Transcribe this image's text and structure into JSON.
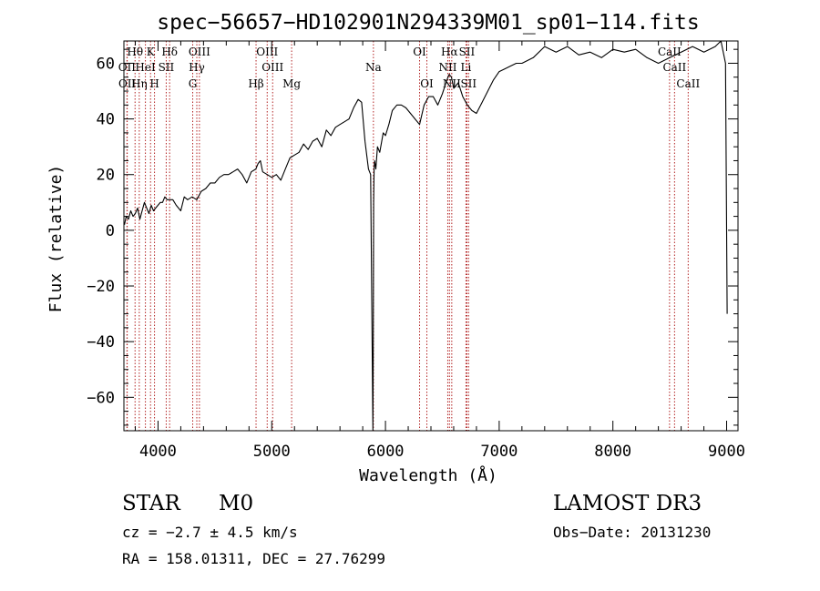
{
  "chart_data": {
    "type": "line",
    "title": "spec−56657−HD102901N294339M01_sp01−114.fits",
    "xlabel": "Wavelength (Å)",
    "ylabel": "Flux (relative)",
    "xlim": [
      3700,
      9100
    ],
    "ylim": [
      -72,
      68
    ],
    "xticks": [
      4000,
      5000,
      6000,
      7000,
      8000,
      9000
    ],
    "yticks": [
      -60,
      -40,
      -20,
      0,
      20,
      40,
      60
    ],
    "ytick_labels": [
      "−60",
      "−40",
      "−20",
      "0",
      "20",
      "40",
      "60"
    ],
    "series": [
      {
        "name": "flux",
        "x": [
          3705,
          3720,
          3740,
          3760,
          3780,
          3800,
          3820,
          3840,
          3860,
          3880,
          3900,
          3920,
          3940,
          3960,
          3980,
          4000,
          4020,
          4040,
          4060,
          4080,
          4100,
          4130,
          4160,
          4200,
          4230,
          4260,
          4300,
          4340,
          4380,
          4420,
          4460,
          4500,
          4540,
          4580,
          4620,
          4660,
          4700,
          4740,
          4780,
          4820,
          4860,
          4880,
          4900,
          4920,
          4960,
          5000,
          5040,
          5080,
          5120,
          5160,
          5200,
          5240,
          5280,
          5320,
          5360,
          5400,
          5440,
          5480,
          5520,
          5560,
          5600,
          5640,
          5680,
          5720,
          5760,
          5790,
          5820,
          5850,
          5870,
          5885,
          5890,
          5893,
          5896,
          5900,
          5905,
          5915,
          5930,
          5950,
          5980,
          6000,
          6030,
          6060,
          6100,
          6140,
          6180,
          6220,
          6260,
          6300,
          6340,
          6380,
          6420,
          6460,
          6500,
          6540,
          6560,
          6580,
          6600,
          6640,
          6680,
          6720,
          6760,
          6800,
          6850,
          6900,
          6950,
          7000,
          7050,
          7100,
          7150,
          7200,
          7300,
          7400,
          7500,
          7600,
          7700,
          7800,
          7900,
          8000,
          8100,
          8200,
          8300,
          8400,
          8500,
          8600,
          8700,
          8800,
          8900,
          8950,
          8990,
          9000,
          9005
        ],
        "values": [
          2,
          5,
          4,
          7,
          5,
          6,
          8,
          4,
          7,
          10,
          8,
          6,
          9,
          7,
          8,
          9,
          10,
          10,
          12,
          11,
          11,
          11,
          9,
          7,
          12,
          11,
          12,
          11,
          14,
          15,
          17,
          17,
          19,
          20,
          20,
          21,
          22,
          20,
          17,
          21,
          22,
          24,
          25,
          21,
          20,
          19,
          20,
          18,
          22,
          26,
          27,
          28,
          31,
          29,
          32,
          33,
          30,
          36,
          34,
          37,
          38,
          39,
          40,
          44,
          47,
          46,
          32,
          22,
          20,
          -50,
          -72,
          -40,
          10,
          22,
          25,
          22,
          30,
          28,
          35,
          34,
          38,
          43,
          45,
          45,
          44,
          42,
          40,
          38,
          45,
          48,
          48,
          45,
          49,
          54,
          56,
          55,
          51,
          53,
          48,
          45,
          43,
          42,
          46,
          50,
          54,
          57,
          58,
          59,
          60,
          60,
          62,
          66,
          64,
          66,
          63,
          64,
          62,
          65,
          64,
          65,
          62,
          60,
          62,
          64,
          66,
          64,
          66,
          68,
          60,
          0,
          -30
        ]
      }
    ],
    "line_labels": [
      {
        "name": "Hθ",
        "x": 3798,
        "row": 1
      },
      {
        "name": "OII",
        "x": 3727,
        "row": 2
      },
      {
        "name": "OII",
        "x": 3729,
        "row": 3
      },
      {
        "name": "HeI",
        "x": 3889,
        "row": 2
      },
      {
        "name": "Hη",
        "x": 3835,
        "row": 3
      },
      {
        "name": "K",
        "x": 3934,
        "row": 1
      },
      {
        "name": "SII",
        "x": 4072,
        "row": 2
      },
      {
        "name": "H",
        "x": 3969,
        "row": 3
      },
      {
        "name": "Hδ",
        "x": 4102,
        "row": 1
      },
      {
        "name": "OIII",
        "x": 4364,
        "row": 1
      },
      {
        "name": "Hγ",
        "x": 4341,
        "row": 2
      },
      {
        "name": "G",
        "x": 4305,
        "row": 3
      },
      {
        "name": "OIII",
        "x": 4960,
        "row": 1
      },
      {
        "name": "OIII",
        "x": 5008,
        "row": 2
      },
      {
        "name": "Hβ",
        "x": 4862,
        "row": 3
      },
      {
        "name": "Mg",
        "x": 5175,
        "row": 3
      },
      {
        "name": "Na",
        "x": 5894,
        "row": 2
      },
      {
        "name": "OI",
        "x": 6300,
        "row": 1
      },
      {
        "name": "OI",
        "x": 6364,
        "row": 3
      },
      {
        "name": "Hα",
        "x": 6563,
        "row": 1
      },
      {
        "name": "SII",
        "x": 6716,
        "row": 1
      },
      {
        "name": "NII",
        "x": 6548,
        "row": 2
      },
      {
        "name": "Li",
        "x": 6708,
        "row": 2
      },
      {
        "name": "NII",
        "x": 6583,
        "row": 3
      },
      {
        "name": "SII",
        "x": 6731,
        "row": 3
      },
      {
        "name": "CaII",
        "x": 8498,
        "row": 1
      },
      {
        "name": "CaII",
        "x": 8542,
        "row": 2
      },
      {
        "name": "CaII",
        "x": 8662,
        "row": 3
      }
    ],
    "line_color": "#000000",
    "marker_color": "#b22222"
  },
  "info": {
    "object_class": "STAR",
    "subclass": "M0",
    "survey": "LAMOST DR3",
    "cz": "cz = −2.7 ± 4.5 km/s",
    "obs_date": "Obs−Date: 20131230",
    "radec": "RA = 158.01311, DEC =  27.76299"
  }
}
